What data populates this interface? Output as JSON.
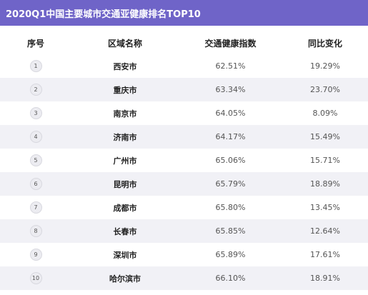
{
  "title": "2020Q1中国主要城市交通亚健康排名TOP10",
  "columns": [
    "序号",
    "区域名称",
    "交通健康指数",
    "同比变化"
  ],
  "rows": [
    {
      "rank": "1",
      "city": "西安市",
      "index": "62.51%",
      "yoy": "19.29%"
    },
    {
      "rank": "2",
      "city": "重庆市",
      "index": "63.34%",
      "yoy": "23.70%"
    },
    {
      "rank": "3",
      "city": "南京市",
      "index": "64.05%",
      "yoy": "8.09%"
    },
    {
      "rank": "4",
      "city": "济南市",
      "index": "64.17%",
      "yoy": "15.49%"
    },
    {
      "rank": "5",
      "city": "广州市",
      "index": "65.06%",
      "yoy": "15.71%"
    },
    {
      "rank": "6",
      "city": "昆明市",
      "index": "65.79%",
      "yoy": "18.89%"
    },
    {
      "rank": "7",
      "city": "成都市",
      "index": "65.80%",
      "yoy": "13.45%"
    },
    {
      "rank": "8",
      "city": "长春市",
      "index": "65.85%",
      "yoy": "12.64%"
    },
    {
      "rank": "9",
      "city": "深圳市",
      "index": "65.89%",
      "yoy": "17.61%"
    },
    {
      "rank": "10",
      "city": "哈尔滨市",
      "index": "66.10%",
      "yoy": "18.91%"
    }
  ],
  "colors": {
    "title_bg": "#6f64c8",
    "stripe": "#f1f1f6"
  }
}
